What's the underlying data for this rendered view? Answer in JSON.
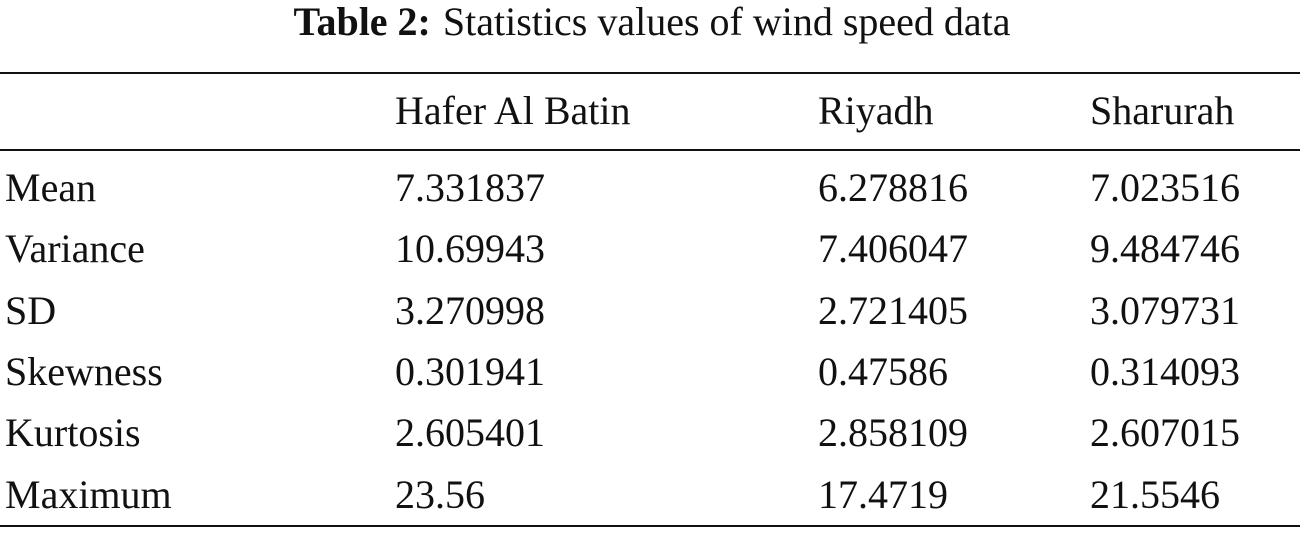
{
  "caption": {
    "label": "Table 2:",
    "text": "Statistics values of wind speed data"
  },
  "table": {
    "header": [
      "Hafer Al Batin",
      "Riyadh",
      "Sharurah"
    ],
    "rows": [
      {
        "label": "Mean",
        "values": [
          "7.331837",
          "6.278816",
          "7.023516"
        ]
      },
      {
        "label": "Variance",
        "values": [
          "10.69943",
          "7.406047",
          "9.484746"
        ]
      },
      {
        "label": "SD",
        "values": [
          "3.270998",
          "2.721405",
          "3.079731"
        ]
      },
      {
        "label": "Skewness",
        "values": [
          "0.301941",
          "0.47586",
          "0.314093"
        ]
      },
      {
        "label": "Kurtosis",
        "values": [
          "2.605401",
          "2.858109",
          "2.607015"
        ]
      },
      {
        "label": "Maximum",
        "values": [
          "23.56",
          "17.4719",
          "21.5546"
        ]
      }
    ]
  }
}
